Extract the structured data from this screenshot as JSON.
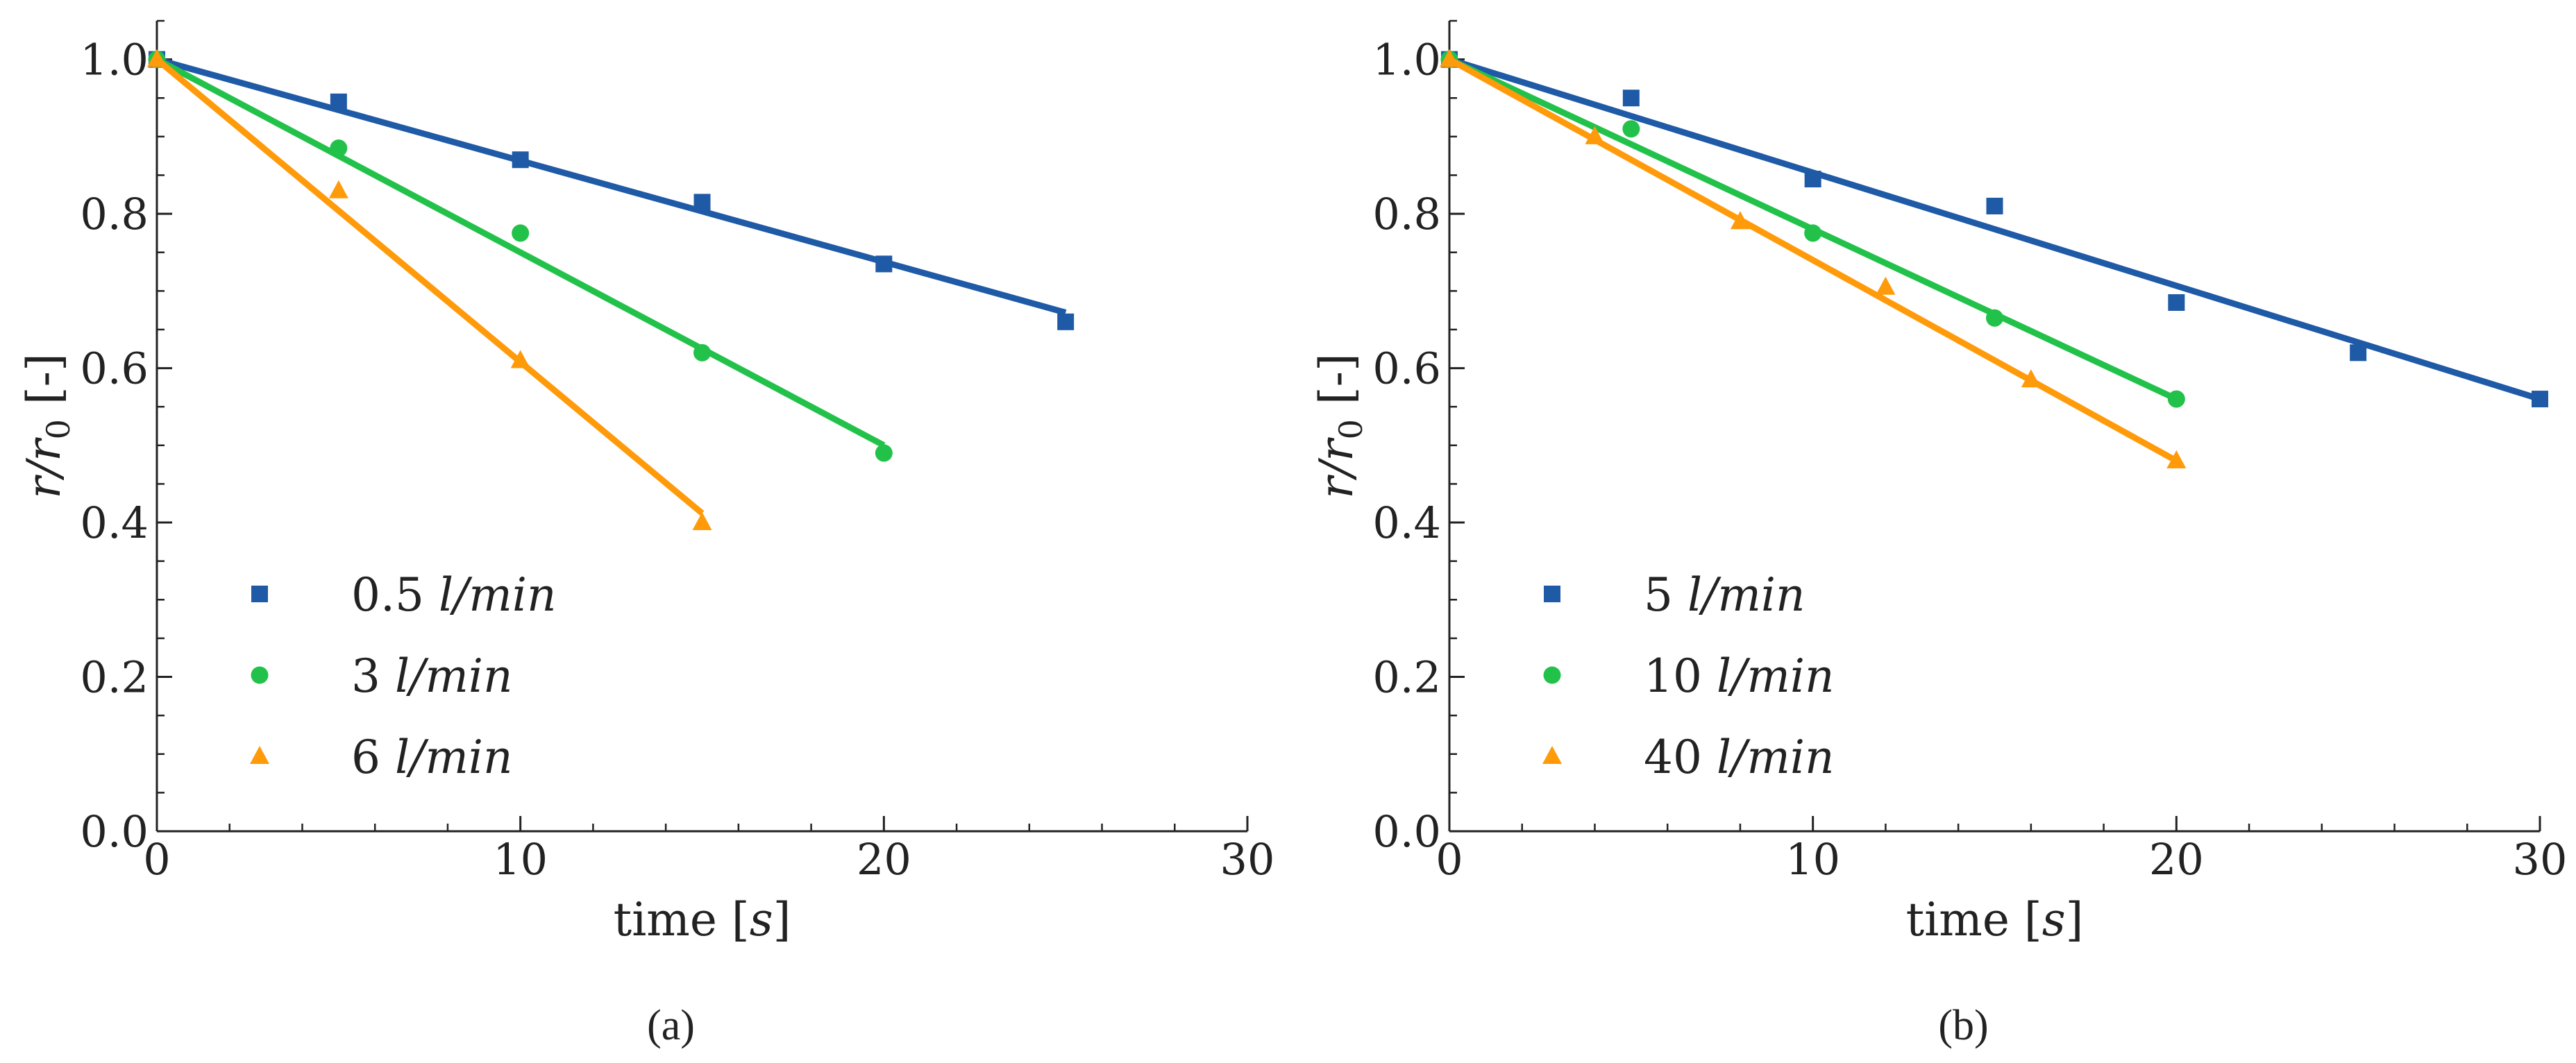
{
  "colors": {
    "blue": "#1f5aa6",
    "green": "#22c24a",
    "orange": "#ff9a0a",
    "axis": "#222222"
  },
  "chart_data": [
    {
      "type": "scatter",
      "panel_label": "(a)",
      "xlabel": {
        "prefix": "time [",
        "var": "s",
        "suffix": "]"
      },
      "ylabel": {
        "prefix": "r/r",
        "sub": "0",
        "suffix": " [-]"
      },
      "xlim": [
        0,
        30
      ],
      "ylim": [
        0,
        1.05
      ],
      "xticks": [
        0,
        10,
        20,
        30
      ],
      "xtick_labels": [
        "0",
        "10",
        "20",
        "30"
      ],
      "yticks": [
        0.0,
        0.2,
        0.4,
        0.6,
        0.8,
        1.0
      ],
      "ytick_labels": [
        "0.0",
        "0.2",
        "0.4",
        "0.6",
        "0.8",
        "1.0"
      ],
      "legend_position": "lower-left",
      "series": [
        {
          "name": "0.5 l/min",
          "num": "0.5",
          "unit": "l/min",
          "marker": "square",
          "color": "#1f5aa6",
          "x": [
            0,
            5,
            10,
            15,
            20,
            25
          ],
          "y": [
            1.0,
            0.945,
            0.87,
            0.815,
            0.735,
            0.66
          ],
          "fit": {
            "x": [
              0,
              25
            ],
            "y": [
              1.0,
              0.672
            ]
          }
        },
        {
          "name": "3 l/min",
          "num": "3",
          "unit": "l/min",
          "marker": "circle",
          "color": "#22c24a",
          "x": [
            0,
            5,
            10,
            15,
            20
          ],
          "y": [
            1.0,
            0.885,
            0.775,
            0.62,
            0.49
          ],
          "fit": {
            "x": [
              0,
              20
            ],
            "y": [
              1.0,
              0.5
            ]
          }
        },
        {
          "name": "6 l/min",
          "num": "6",
          "unit": "l/min",
          "marker": "triangle",
          "color": "#ff9a0a",
          "x": [
            0,
            5,
            10,
            15
          ],
          "y": [
            1.0,
            0.83,
            0.61,
            0.4
          ],
          "fit": {
            "x": [
              0,
              15
            ],
            "y": [
              1.0,
              0.412
            ]
          }
        }
      ]
    },
    {
      "type": "scatter",
      "panel_label": "(b)",
      "xlabel": {
        "prefix": "time [",
        "var": "s",
        "suffix": "]"
      },
      "ylabel": {
        "prefix": "r/r",
        "sub": "0",
        "suffix": " [-]"
      },
      "xlim": [
        0,
        30
      ],
      "ylim": [
        0,
        1.05
      ],
      "xticks": [
        0,
        10,
        20,
        30
      ],
      "xtick_labels": [
        "0",
        "10",
        "20",
        "30"
      ],
      "yticks": [
        0.0,
        0.2,
        0.4,
        0.6,
        0.8,
        1.0
      ],
      "ytick_labels": [
        "0.0",
        "0.2",
        "0.4",
        "0.6",
        "0.8",
        "1.0"
      ],
      "legend_position": "lower-left",
      "series": [
        {
          "name": "5 l/min",
          "num": "5",
          "unit": "l/min",
          "marker": "square",
          "color": "#1f5aa6",
          "x": [
            0,
            5,
            10,
            15,
            20,
            25,
            30
          ],
          "y": [
            1.0,
            0.95,
            0.845,
            0.81,
            0.685,
            0.62,
            0.56
          ],
          "fit": {
            "x": [
              0,
              30
            ],
            "y": [
              1.0,
              0.56
            ]
          }
        },
        {
          "name": "10 l/min",
          "num": "10",
          "unit": "l/min",
          "marker": "circle",
          "color": "#22c24a",
          "x": [
            0,
            5,
            10,
            15,
            20
          ],
          "y": [
            1.0,
            0.91,
            0.775,
            0.665,
            0.56
          ],
          "fit": {
            "x": [
              0,
              20
            ],
            "y": [
              1.0,
              0.56
            ]
          }
        },
        {
          "name": "40 l/min",
          "num": "40",
          "unit": "l/min",
          "marker": "triangle",
          "color": "#ff9a0a",
          "x": [
            0,
            4,
            8,
            12,
            16,
            20
          ],
          "y": [
            1.0,
            0.9,
            0.79,
            0.705,
            0.585,
            0.48
          ],
          "fit": {
            "x": [
              0,
              20
            ],
            "y": [
              1.0,
              0.48
            ]
          }
        }
      ]
    }
  ]
}
